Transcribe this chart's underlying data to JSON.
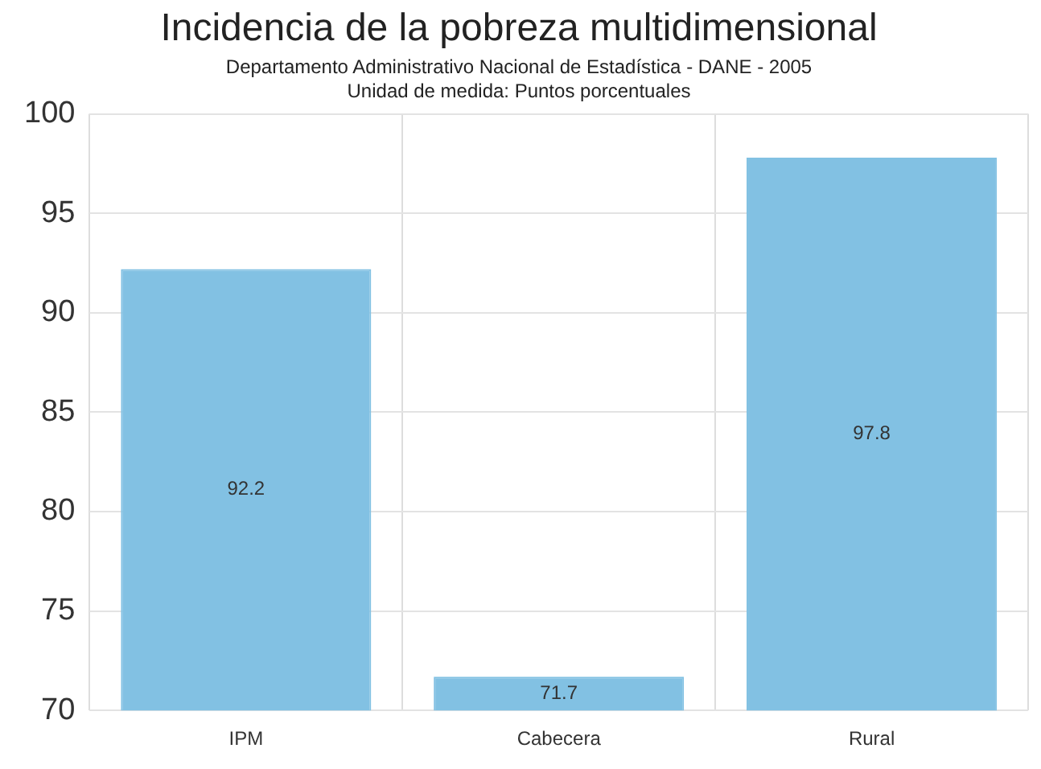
{
  "chart_data": {
    "type": "bar",
    "title": "Incidencia de la pobreza multidimensional",
    "subtitle": "Departamento Administrativo Nacional de Estadística - DANE - 2005",
    "annotations": [
      "Unidad de medida: Puntos porcentuales"
    ],
    "categories": [
      "IPM",
      "Cabecera",
      "Rural"
    ],
    "values": [
      92.2,
      71.7,
      97.8
    ],
    "color": "#82c1e3",
    "ylim": [
      70,
      100
    ],
    "yticks": [
      70,
      75,
      80,
      85,
      90,
      95,
      100
    ],
    "grid": true,
    "data_labels": true
  }
}
